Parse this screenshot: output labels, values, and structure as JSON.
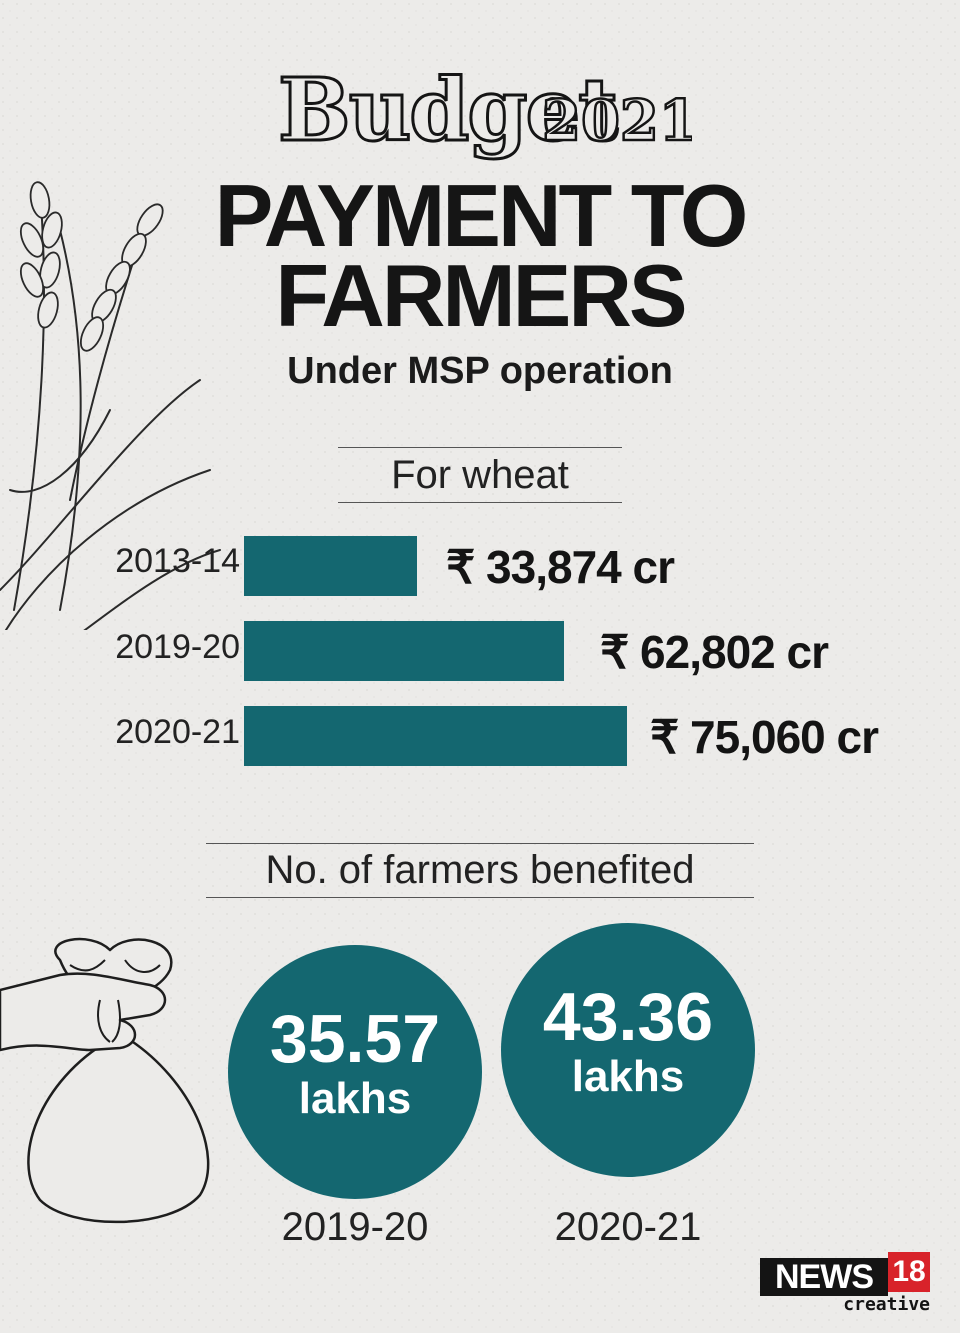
{
  "header": {
    "logo_text": "Budget2021",
    "title_line1": "PAYMENT TO",
    "title_line2": "FARMERS",
    "subtitle": "Under MSP operation"
  },
  "colors": {
    "accent": "#146770",
    "background": "#ecebe9",
    "text": "#141414",
    "brand_red": "#d8232a"
  },
  "icons": [
    "wheat-icon",
    "money-bag-hand-icon"
  ],
  "chart_data": [
    {
      "type": "bar",
      "orientation": "horizontal",
      "title": "For wheat",
      "categories": [
        "2013-14",
        "2019-20",
        "2020-21"
      ],
      "values": [
        33874,
        62802,
        75060
      ],
      "value_labels": [
        "₹ 33,874 cr",
        "₹ 62,802 cr",
        "₹ 75,060 cr"
      ]
    },
    {
      "type": "bubble",
      "title": "No. of farmers benefited",
      "categories": [
        "2019-20",
        "2020-21"
      ],
      "values": [
        35.57,
        43.36
      ],
      "value_labels": [
        "35.57",
        "43.36"
      ],
      "unit": "lakhs"
    }
  ],
  "branding": {
    "news": "NEWS",
    "number": "18",
    "tagline": "creative"
  }
}
